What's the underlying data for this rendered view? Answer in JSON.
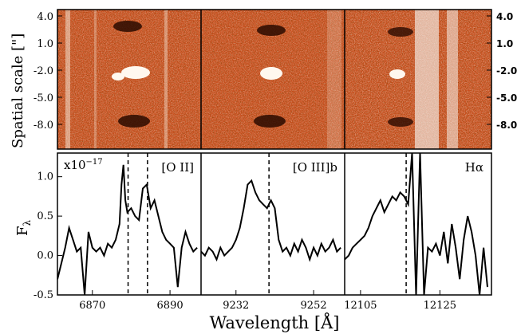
{
  "chart_data": {
    "type": "line",
    "xlabel": "Wavelength [Å]",
    "ylabel_top": "Spatial scale [\"]",
    "ylabel_bottom": "F",
    "ylabel_bottom_sub": "λ",
    "ylim": [
      -0.5,
      1.3
    ],
    "y_ticks": [
      "1.0",
      "0.5",
      "0.0",
      "-0.5"
    ],
    "y_tick_values": [
      1.0,
      0.5,
      0.0,
      -0.5
    ],
    "spatial_ticks": [
      "4.0",
      "1.0",
      "-2.0",
      "-5.0",
      "-8.0"
    ],
    "multiplier": "x10",
    "multiplier_exp": "−17",
    "colors": {
      "spectrum_2d_base": "#c8501e",
      "line": "#000000"
    },
    "panels": [
      {
        "label": "[O II]",
        "x_ticks": [
          "6870",
          "6890"
        ],
        "x_tick_values": [
          6870,
          6890
        ],
        "xlim": [
          6861,
          6898
        ],
        "marker_lines": [
          6879.2,
          6884.2
        ],
        "x": [
          6861,
          6862,
          6863,
          6864,
          6865,
          6866,
          6867,
          6868,
          6869,
          6870,
          6871,
          6872,
          6873,
          6874,
          6875,
          6876,
          6877,
          6877.5,
          6878,
          6878.5,
          6879,
          6880,
          6881,
          6882,
          6883,
          6884,
          6885,
          6886,
          6887,
          6888,
          6889,
          6890,
          6891,
          6892,
          6893,
          6894,
          6895,
          6896,
          6897
        ],
        "y": [
          -0.3,
          -0.1,
          0.1,
          0.35,
          0.2,
          0.05,
          0.1,
          -0.5,
          0.3,
          0.1,
          0.05,
          0.1,
          0.0,
          0.15,
          0.1,
          0.2,
          0.4,
          0.9,
          1.15,
          0.7,
          0.55,
          0.6,
          0.5,
          0.45,
          0.85,
          0.9,
          0.6,
          0.7,
          0.5,
          0.3,
          0.2,
          0.15,
          0.1,
          -0.4,
          0.1,
          0.3,
          0.15,
          0.05,
          0.1
        ]
      },
      {
        "label": "[O III]b",
        "x_ticks": [
          "9232",
          "9252"
        ],
        "x_tick_values": [
          9232,
          9252
        ],
        "xlim": [
          9223,
          9260
        ],
        "marker_lines": [
          9240.5
        ],
        "x": [
          9223,
          9224,
          9225,
          9226,
          9227,
          9228,
          9229,
          9230,
          9231,
          9232,
          9233,
          9234,
          9235,
          9236,
          9237,
          9238,
          9239,
          9240,
          9241,
          9242,
          9243,
          9244,
          9245,
          9246,
          9247,
          9248,
          9249,
          9250,
          9251,
          9252,
          9253,
          9254,
          9255,
          9256,
          9257,
          9258,
          9259
        ],
        "y": [
          0.05,
          0.0,
          0.1,
          0.05,
          -0.05,
          0.1,
          0.0,
          0.05,
          0.1,
          0.2,
          0.35,
          0.6,
          0.9,
          0.95,
          0.8,
          0.7,
          0.65,
          0.6,
          0.7,
          0.6,
          0.2,
          0.05,
          0.1,
          0.0,
          0.15,
          0.05,
          0.2,
          0.1,
          -0.05,
          0.1,
          0.0,
          0.15,
          0.05,
          0.1,
          0.2,
          0.05,
          0.1
        ]
      },
      {
        "label": "Hα",
        "x_ticks": [
          "12105",
          "12125"
        ],
        "x_tick_values": [
          12105,
          12125
        ],
        "xlim": [
          12101,
          12138
        ],
        "marker_lines": [
          12116.5
        ],
        "x": [
          12101,
          12102,
          12103,
          12104,
          12105,
          12106,
          12107,
          12108,
          12109,
          12110,
          12111,
          12112,
          12113,
          12114,
          12115,
          12116,
          12117,
          12118,
          12119,
          12120,
          12121,
          12122,
          12123,
          12124,
          12125,
          12126,
          12127,
          12128,
          12129,
          12130,
          12131,
          12132,
          12133,
          12134,
          12135,
          12136,
          12137
        ],
        "y": [
          -0.05,
          0.0,
          0.1,
          0.15,
          0.2,
          0.25,
          0.35,
          0.5,
          0.6,
          0.7,
          0.55,
          0.65,
          0.75,
          0.7,
          0.8,
          0.75,
          0.65,
          1.3,
          -0.5,
          1.3,
          -0.5,
          0.1,
          0.05,
          0.15,
          0.0,
          0.3,
          -0.1,
          0.4,
          0.1,
          -0.3,
          0.2,
          0.5,
          0.3,
          0.0,
          -0.5,
          0.1,
          -0.4
        ]
      }
    ]
  }
}
